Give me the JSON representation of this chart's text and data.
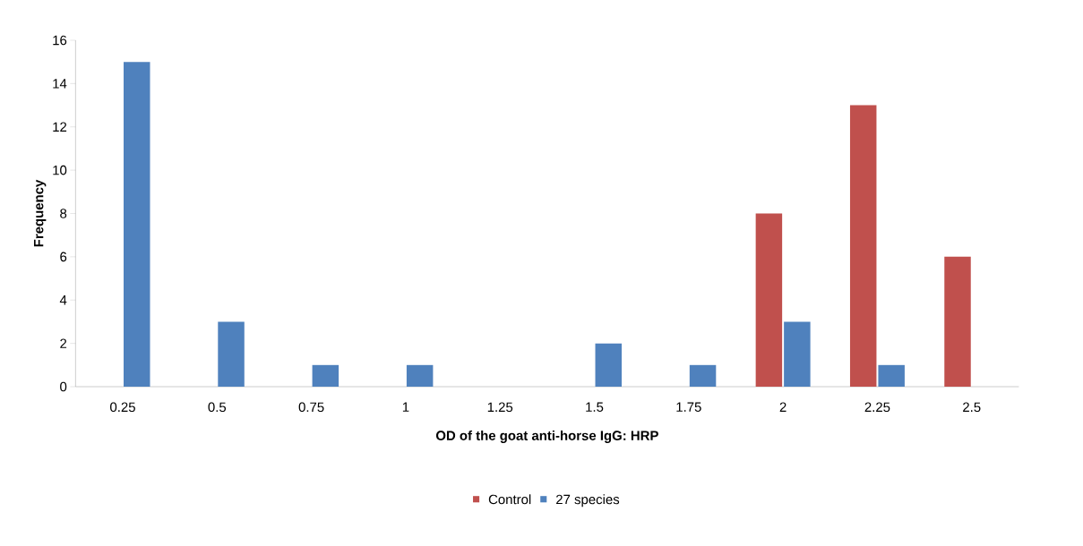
{
  "chart_data": {
    "type": "bar",
    "xlabel": "OD of the goat anti-horse IgG: HRP",
    "ylabel": "Frequency",
    "categories": [
      "0.25",
      "0.5",
      "0.75",
      "1",
      "1.25",
      "1.5",
      "1.75",
      "2",
      "2.25",
      "2.5"
    ],
    "series": [
      {
        "name": "Control",
        "color": "#c0504d",
        "values": [
          0,
          0,
          0,
          0,
          0,
          0,
          0,
          8,
          13,
          6
        ]
      },
      {
        "name": "27 species",
        "color": "#4f81bd",
        "values": [
          15,
          3,
          1,
          1,
          0,
          2,
          1,
          3,
          1,
          0
        ]
      }
    ],
    "ylim": [
      0,
      16
    ],
    "yticks": [
      0,
      2,
      4,
      6,
      8,
      10,
      12,
      14,
      16
    ],
    "grid": false,
    "legend": "bottom"
  }
}
